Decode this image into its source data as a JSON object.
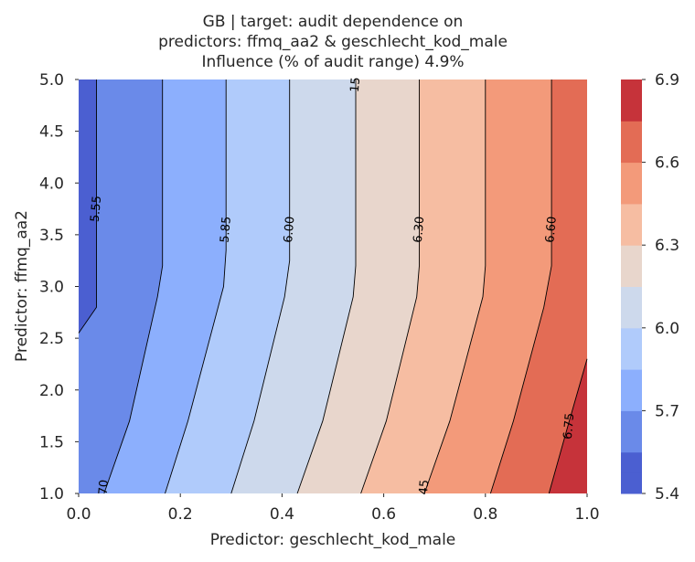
{
  "chart_data": {
    "type": "contour",
    "title_lines": [
      "GB | target: audit dependence on",
      "predictors: ffmq_aa2 & geschlecht_kod_male",
      "Influence (% of audit range) 4.9%"
    ],
    "xlabel": "Predictor: geschlecht_kod_male",
    "ylabel": "Predictor: ffmq_aa2",
    "xlim": [
      0.0,
      1.0
    ],
    "ylim": [
      1.0,
      5.0
    ],
    "x_ticks": [
      "0.0",
      "0.2",
      "0.4",
      "0.6",
      "0.8",
      "1.0"
    ],
    "y_ticks": [
      "1.0",
      "1.5",
      "2.0",
      "2.5",
      "3.0",
      "3.5",
      "4.0",
      "4.5",
      "5.0"
    ],
    "levels": [
      5.4,
      5.475,
      5.55,
      5.7,
      5.85,
      6.0,
      6.15,
      6.3,
      6.45,
      6.6,
      6.75,
      6.9
    ],
    "band_colors": [
      "#4b5fd1",
      "#6a8ae9",
      "#8caffd",
      "#b0cbfb",
      "#cdd9ec",
      "#e8d6cc",
      "#f6bda2",
      "#f39a7a",
      "#e36c55",
      "#c6333a"
    ],
    "colorbar_ticks": [
      "5.4",
      "5.7",
      "6.0",
      "6.3",
      "6.6",
      "6.9"
    ],
    "contour_lines": [
      {
        "level": 5.475,
        "points": [
          [
            0.0,
            2.55
          ],
          [
            0.035,
            2.8
          ],
          [
            0.035,
            5.0
          ]
        ]
      },
      {
        "level": 5.55,
        "points": [
          [
            0.05,
            1.0
          ],
          [
            0.1,
            1.7
          ],
          [
            0.155,
            2.9
          ],
          [
            0.165,
            3.2
          ],
          [
            0.165,
            5.0
          ]
        ]
      },
      {
        "level": 5.7,
        "points": [
          [
            0.17,
            1.0
          ],
          [
            0.215,
            1.7
          ],
          [
            0.285,
            3.0
          ],
          [
            0.29,
            3.35
          ],
          [
            0.29,
            5.0
          ]
        ]
      },
      {
        "level": 5.85,
        "points": [
          [
            0.3,
            1.0
          ],
          [
            0.345,
            1.7
          ],
          [
            0.405,
            2.9
          ],
          [
            0.415,
            3.25
          ],
          [
            0.415,
            5.0
          ]
        ]
      },
      {
        "level": 6.0,
        "points": [
          [
            0.43,
            1.0
          ],
          [
            0.48,
            1.7
          ],
          [
            0.54,
            2.9
          ],
          [
            0.545,
            3.2
          ],
          [
            0.545,
            5.0
          ]
        ]
      },
      {
        "level": 6.15,
        "points": [
          [
            0.555,
            1.0
          ],
          [
            0.605,
            1.7
          ],
          [
            0.665,
            2.9
          ],
          [
            0.67,
            3.2
          ],
          [
            0.67,
            5.0
          ]
        ]
      },
      {
        "level": 6.3,
        "points": [
          [
            0.68,
            1.0
          ],
          [
            0.73,
            1.7
          ],
          [
            0.795,
            2.9
          ],
          [
            0.8,
            3.2
          ],
          [
            0.8,
            5.0
          ]
        ]
      },
      {
        "level": 6.45,
        "points": [
          [
            0.81,
            1.0
          ],
          [
            0.855,
            1.7
          ],
          [
            0.915,
            2.8
          ],
          [
            0.93,
            3.2
          ],
          [
            0.93,
            5.0
          ]
        ]
      },
      {
        "level": 6.6,
        "points": [
          [
            0.925,
            1.0
          ],
          [
            0.965,
            1.7
          ],
          [
            1.0,
            2.3
          ]
        ]
      }
    ],
    "contour_labels": [
      {
        "text": "5.55",
        "x": 0.035,
        "y": 3.75
      },
      {
        "text": "5.85",
        "x": 0.29,
        "y": 3.55
      },
      {
        "text": "6.00",
        "x": 0.415,
        "y": 3.55
      },
      {
        "text": "15",
        "x": 0.545,
        "y": 4.95
      },
      {
        "text": "6.30",
        "x": 0.67,
        "y": 3.55
      },
      {
        "text": "6.60",
        "x": 0.93,
        "y": 3.55
      },
      {
        "text": "6.75",
        "x": 0.965,
        "y": 1.65
      },
      {
        "text": "70",
        "x": 0.05,
        "y": 1.06
      },
      {
        "text": "45",
        "x": 0.68,
        "y": 1.06
      }
    ]
  }
}
